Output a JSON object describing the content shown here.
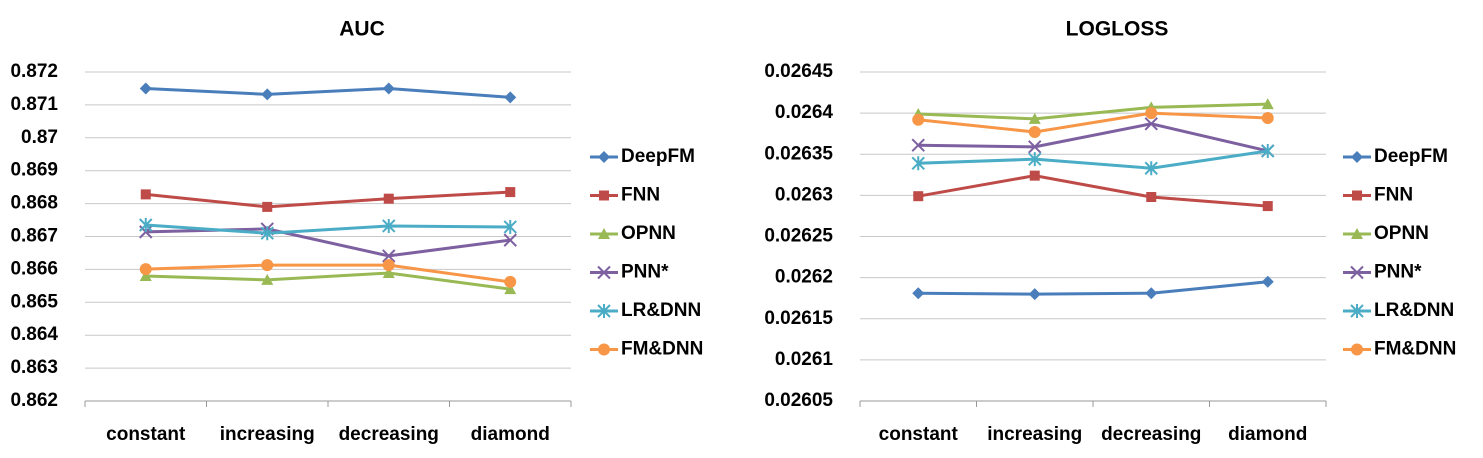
{
  "chart_data": [
    {
      "type": "line",
      "title": "AUC",
      "categories": [
        "constant",
        "increasing",
        "decreasing",
        "diamond"
      ],
      "ylim": [
        0.862,
        0.872
      ],
      "yticks": [
        0.862,
        0.863,
        0.864,
        0.865,
        0.866,
        0.867,
        0.868,
        0.869,
        0.87,
        0.871,
        0.872
      ],
      "grid": true,
      "legend": "right",
      "series": [
        {
          "name": "DeepFM",
          "color": "#4a7ebb",
          "marker": "diamond",
          "values": [
            0.8715,
            0.87132,
            0.8715,
            0.87123
          ]
        },
        {
          "name": "FNN",
          "color": "#be4b48",
          "marker": "square",
          "values": [
            0.86828,
            0.8679,
            0.86815,
            0.86835
          ]
        },
        {
          "name": "OPNN",
          "color": "#98b954",
          "marker": "triangle",
          "values": [
            0.8658,
            0.86568,
            0.86589,
            0.8654
          ]
        },
        {
          "name": "PNN*",
          "color": "#7d60a0",
          "marker": "x",
          "values": [
            0.86714,
            0.86723,
            0.86641,
            0.86689
          ]
        },
        {
          "name": "LR&DNN",
          "color": "#4bacc6",
          "marker": "star",
          "values": [
            0.86735,
            0.8671,
            0.86732,
            0.86729
          ]
        },
        {
          "name": "FM&DNN",
          "color": "#f79646",
          "marker": "circle",
          "values": [
            0.86601,
            0.86613,
            0.86613,
            0.86562
          ]
        }
      ]
    },
    {
      "type": "line",
      "title": "LOGLOSS",
      "categories": [
        "constant",
        "increasing",
        "decreasing",
        "diamond"
      ],
      "ylim": [
        0.02605,
        0.02645
      ],
      "yticks": [
        0.02605,
        0.0261,
        0.02615,
        0.0262,
        0.02625,
        0.0263,
        0.02635,
        0.0264,
        0.02645
      ],
      "grid": true,
      "legend": "right",
      "series": [
        {
          "name": "DeepFM",
          "color": "#4a7ebb",
          "marker": "diamond",
          "values": [
            0.026181,
            0.02618,
            0.026181,
            0.026195
          ]
        },
        {
          "name": "FNN",
          "color": "#be4b48",
          "marker": "square",
          "values": [
            0.026299,
            0.026324,
            0.026298,
            0.026287
          ]
        },
        {
          "name": "OPNN",
          "color": "#98b954",
          "marker": "triangle",
          "values": [
            0.026399,
            0.026393,
            0.026407,
            0.026411
          ]
        },
        {
          "name": "PNN*",
          "color": "#7d60a0",
          "marker": "x",
          "values": [
            0.026361,
            0.026359,
            0.026387,
            0.026354
          ]
        },
        {
          "name": "LR&DNN",
          "color": "#4bacc6",
          "marker": "star",
          "values": [
            0.026339,
            0.026344,
            0.026333,
            0.026354
          ]
        },
        {
          "name": "FM&DNN",
          "color": "#f79646",
          "marker": "circle",
          "values": [
            0.026392,
            0.026377,
            0.0264,
            0.026394
          ]
        }
      ]
    }
  ]
}
